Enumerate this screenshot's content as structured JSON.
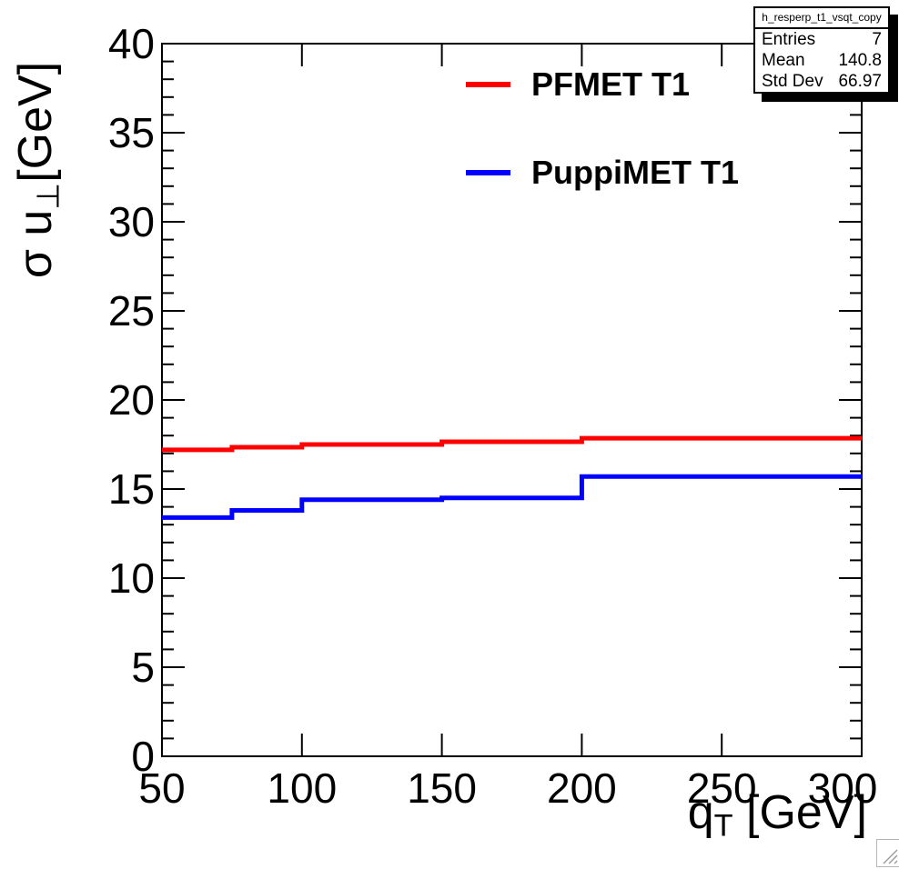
{
  "chart_data": {
    "type": "line",
    "line_style": "histogram-step",
    "title": "",
    "x_axis": {
      "label": "q_T [GeV]",
      "label_prefix": "q",
      "label_subscript": "T",
      "label_suffix": " [GeV]",
      "range": [
        50,
        300
      ],
      "ticks": [
        50,
        100,
        150,
        200,
        250,
        300
      ]
    },
    "y_axis": {
      "label": "σ u⊥ [GeV]",
      "label_prefix": "σ u",
      "label_subscript": "⊥",
      "label_suffix": "[GeV]",
      "range": [
        0,
        40
      ],
      "ticks": [
        0,
        5,
        10,
        15,
        20,
        25,
        30,
        35,
        40
      ],
      "minor_tick_step": 1
    },
    "bin_edges": [
      50,
      75,
      100,
      150,
      200,
      300
    ],
    "series": [
      {
        "name": "PFMET T1",
        "color": "#ff0000",
        "values": [
          17.2,
          17.35,
          17.5,
          17.65,
          17.85
        ]
      },
      {
        "name": "PuppiMET T1",
        "color": "#0000ff",
        "values": [
          13.4,
          13.8,
          14.4,
          14.5,
          15.7
        ]
      }
    ],
    "legend_position": "top-center",
    "grid": false,
    "frame_color": "#000000"
  },
  "stats_box": {
    "title": "h_resperp_t1_vsqt_copy",
    "rows": [
      {
        "label": "Entries",
        "value": "7"
      },
      {
        "label": "Mean",
        "value": "140.8"
      },
      {
        "label": "Std Dev",
        "value": "66.97"
      }
    ]
  }
}
